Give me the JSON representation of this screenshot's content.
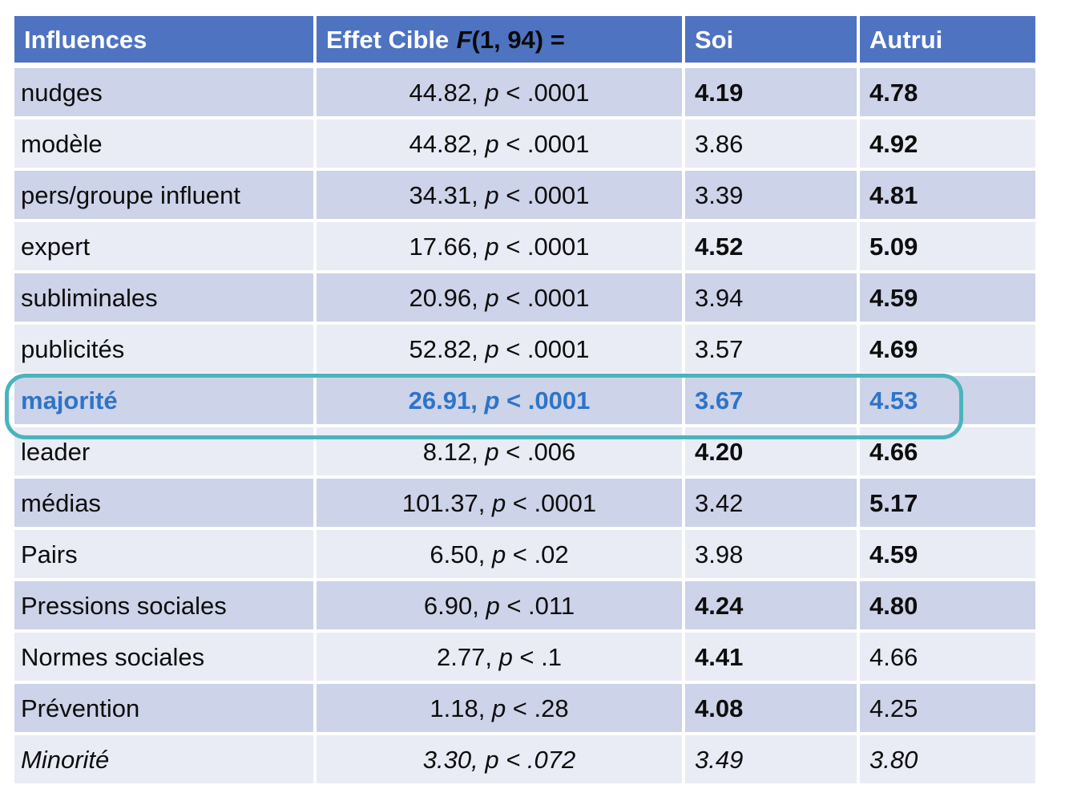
{
  "colors": {
    "header_bg": "#4e73c1",
    "header_text": "#ffffff",
    "header_stat_text": "#0a0a0a",
    "band_dark": "#cdd3e8",
    "band_light": "#e9ebf5",
    "body_text": "#0d0d0d",
    "highlight_text": "#2e74c8",
    "highlight_border": "#4ab4bc"
  },
  "header": {
    "influences": "Influences",
    "effect_label": "Effet Cible",
    "effect_f": "F",
    "effect_args": "(1, 94) =",
    "soi": "Soi",
    "autrui": "Autrui"
  },
  "rows": [
    {
      "influence": "nudges",
      "f": "44.82,",
      "p_symbol": "p",
      "p_rest": "< .0001",
      "soi": "4.19",
      "soi_bold": true,
      "autrui": "4.78",
      "autrui_bold": true,
      "highlight": false,
      "italic": false
    },
    {
      "influence": "modèle",
      "f": "44.82,",
      "p_symbol": "p",
      "p_rest": "< .0001",
      "soi": "3.86",
      "soi_bold": false,
      "autrui": "4.92",
      "autrui_bold": true,
      "highlight": false,
      "italic": false
    },
    {
      "influence": "pers/groupe influent",
      "f": "34.31,",
      "p_symbol": "p",
      "p_rest": "< .0001",
      "soi": "3.39",
      "soi_bold": false,
      "autrui": "4.81",
      "autrui_bold": true,
      "highlight": false,
      "italic": false
    },
    {
      "influence": "expert",
      "f": "17.66,",
      "p_symbol": "p",
      "p_rest": "< .0001",
      "soi": "4.52",
      "soi_bold": true,
      "autrui": "5.09",
      "autrui_bold": true,
      "highlight": false,
      "italic": false
    },
    {
      "influence": "subliminales",
      "f": "20.96,",
      "p_symbol": "p",
      "p_rest": "< .0001",
      "soi": "3.94",
      "soi_bold": false,
      "autrui": "4.59",
      "autrui_bold": true,
      "highlight": false,
      "italic": false
    },
    {
      "influence": "publicités",
      "f": "52.82,",
      "p_symbol": "p",
      "p_rest": "< .0001",
      "soi": "3.57",
      "soi_bold": false,
      "autrui": "4.69",
      "autrui_bold": true,
      "highlight": false,
      "italic": false
    },
    {
      "influence": "majorité",
      "f": "26.91,",
      "p_symbol": "p",
      "p_rest": "< .0001",
      "soi": "3.67",
      "soi_bold": true,
      "autrui": "4.53",
      "autrui_bold": true,
      "highlight": true,
      "italic": false
    },
    {
      "influence": "leader",
      "f": "8.12,",
      "p_symbol": "p",
      "p_rest": "< .006",
      "soi": "4.20",
      "soi_bold": true,
      "autrui": "4.66",
      "autrui_bold": true,
      "highlight": false,
      "italic": false
    },
    {
      "influence": "médias",
      "f": "101.37,",
      "p_symbol": "p",
      "p_rest": "< .0001",
      "soi": "3.42",
      "soi_bold": false,
      "autrui": "5.17",
      "autrui_bold": true,
      "highlight": false,
      "italic": false
    },
    {
      "influence": "Pairs",
      "f": "6.50,",
      "p_symbol": "p",
      "p_rest": "< .02",
      "soi": "3.98",
      "soi_bold": false,
      "autrui": "4.59",
      "autrui_bold": true,
      "highlight": false,
      "italic": false
    },
    {
      "influence": "Pressions sociales",
      "f": "6.90,",
      "p_symbol": "p",
      "p_rest": "< .011",
      "soi": "4.24",
      "soi_bold": true,
      "autrui": "4.80",
      "autrui_bold": true,
      "highlight": false,
      "italic": false
    },
    {
      "influence": "Normes sociales",
      "f": "2.77,",
      "p_symbol": "p",
      "p_rest": "< .1",
      "soi": "4.41",
      "soi_bold": true,
      "autrui": "4.66",
      "autrui_bold": false,
      "highlight": false,
      "italic": false
    },
    {
      "influence": "Prévention",
      "f": "1.18,",
      "p_symbol": "p",
      "p_rest": "< .28",
      "soi": "4.08",
      "soi_bold": true,
      "autrui": "4.25",
      "autrui_bold": false,
      "highlight": false,
      "italic": false
    },
    {
      "influence": "Minorité",
      "f": "3.30,",
      "p_symbol": "p",
      "p_rest": "< .072",
      "soi": "3.49",
      "soi_bold": false,
      "autrui": "3.80",
      "autrui_bold": false,
      "highlight": false,
      "italic": true
    }
  ]
}
